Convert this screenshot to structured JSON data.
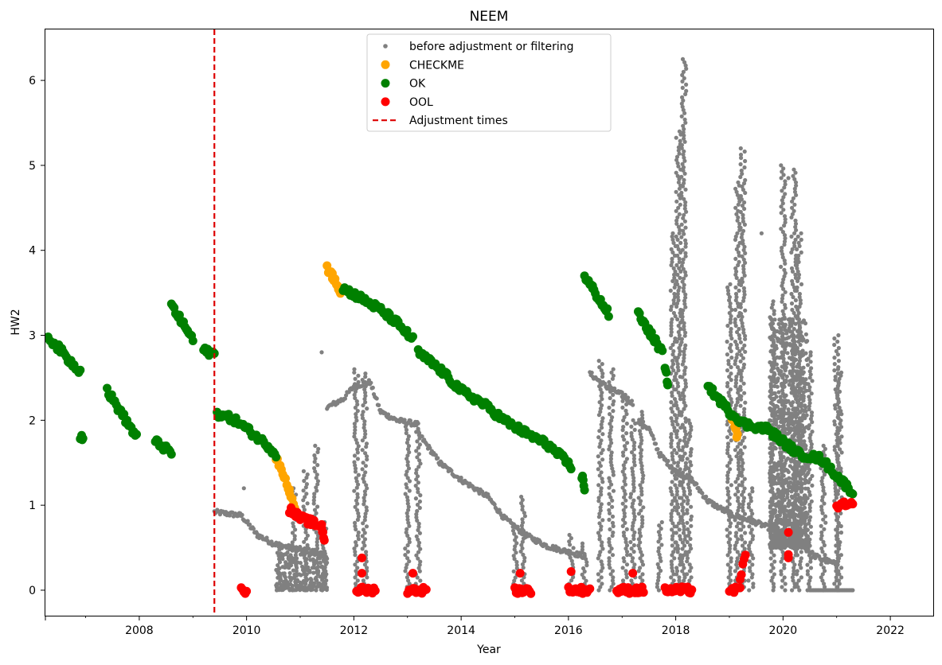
{
  "chart_data": {
    "type": "scatter",
    "title": "NEEM",
    "xlabel": "Year",
    "ylabel": "HW2",
    "xlim": [
      2006.25,
      2022.8
    ],
    "ylim": [
      -0.3,
      6.6
    ],
    "x_ticks": [
      2008,
      2010,
      2012,
      2014,
      2016,
      2018,
      2020,
      2022
    ],
    "x_tick_labels": [
      "2008",
      "2010",
      "2012",
      "2014",
      "2016",
      "2018",
      "2020",
      "2022"
    ],
    "y_ticks": [
      0,
      1,
      2,
      3,
      4,
      5,
      6
    ],
    "y_tick_labels": [
      "0",
      "1",
      "2",
      "3",
      "4",
      "5",
      "6"
    ],
    "grid": false,
    "legend_position": "top-center",
    "adjustment_times": [
      2009.4
    ],
    "series": [
      {
        "name": "before adjustment or filtering",
        "color": "#808080",
        "marker_size": "small",
        "segments": [
          [
            [
              2009.4,
              0.92
            ],
            [
              2009.9,
              0.88
            ],
            [
              2010.2,
              0.65
            ],
            [
              2010.5,
              0.55
            ],
            [
              2010.8,
              0.5
            ],
            [
              2011.3,
              0.45
            ],
            [
              2011.5,
              0.4
            ]
          ],
          [
            [
              2011.5,
              2.15
            ],
            [
              2011.8,
              2.25
            ],
            [
              2012.0,
              2.4
            ],
            [
              2012.3,
              2.45
            ],
            [
              2012.5,
              2.1
            ],
            [
              2012.8,
              2.0
            ],
            [
              2013.2,
              1.95
            ]
          ],
          [
            [
              2013.2,
              1.85
            ],
            [
              2013.6,
              1.5
            ],
            [
              2014.0,
              1.3
            ],
            [
              2014.5,
              1.1
            ],
            [
              2014.8,
              0.85
            ],
            [
              2015.2,
              0.65
            ],
            [
              2015.6,
              0.52
            ],
            [
              2016.0,
              0.45
            ],
            [
              2016.3,
              0.4
            ]
          ],
          [
            [
              2016.4,
              2.55
            ],
            [
              2016.7,
              2.4
            ],
            [
              2017.0,
              2.3
            ],
            [
              2017.2,
              2.2
            ]
          ],
          [
            [
              2017.3,
              2.0
            ],
            [
              2017.5,
              1.9
            ],
            [
              2017.7,
              1.6
            ],
            [
              2018.0,
              1.4
            ],
            [
              2018.3,
              1.3
            ],
            [
              2018.6,
              1.05
            ],
            [
              2019.0,
              0.9
            ],
            [
              2019.4,
              0.82
            ],
            [
              2019.8,
              0.72
            ],
            [
              2020.2,
              0.6
            ],
            [
              2020.6,
              0.4
            ],
            [
              2021.0,
              0.3
            ]
          ]
        ],
        "spikes": [
          [
            2010.6,
            0,
            0.55
          ],
          [
            2010.9,
            0,
            1.2
          ],
          [
            2011.1,
            0,
            1.4
          ],
          [
            2011.3,
            0,
            1.7
          ],
          [
            2011.45,
            0,
            0.8
          ],
          [
            2012.05,
            0,
            2.6
          ],
          [
            2012.2,
            0,
            2.55
          ],
          [
            2013.0,
            0,
            2.0
          ],
          [
            2013.2,
            0,
            1.9
          ],
          [
            2015.0,
            0,
            0.7
          ],
          [
            2015.15,
            0,
            1.1
          ],
          [
            2016.05,
            0,
            0.65
          ],
          [
            2016.3,
            0,
            0.55
          ],
          [
            2016.6,
            0,
            2.7
          ],
          [
            2016.8,
            0,
            2.6
          ],
          [
            2017.05,
            0,
            2.3
          ],
          [
            2017.2,
            0,
            2.0
          ],
          [
            2017.35,
            0,
            2.1
          ],
          [
            2017.7,
            0,
            0.8
          ],
          [
            2017.95,
            0,
            4.2
          ],
          [
            2018.05,
            0,
            5.4
          ],
          [
            2018.15,
            0,
            6.25
          ],
          [
            2018.25,
            0,
            2.0
          ],
          [
            2019.0,
            0,
            3.6
          ],
          [
            2019.15,
            0,
            4.8
          ],
          [
            2019.25,
            0,
            5.2
          ],
          [
            2019.4,
            0,
            1.2
          ],
          [
            2019.8,
            0,
            3.4
          ],
          [
            2020.0,
            0,
            5.0
          ],
          [
            2020.2,
            0,
            4.95
          ],
          [
            2020.3,
            0,
            4.2
          ],
          [
            2020.5,
            0,
            2.8
          ],
          [
            2020.75,
            0,
            1.7
          ],
          [
            2021.0,
            0,
            3.0
          ],
          [
            2021.05,
            0,
            2.6
          ]
        ],
        "clusters": [
          [
            2010.55,
            2011.5,
            0.0,
            0.45
          ],
          [
            2019.75,
            2020.45,
            0.5,
            3.2
          ]
        ],
        "flat_runs": [
          [
            2020.5,
            2021.3,
            0.0
          ]
        ],
        "outliers": [
          [
            2009.95,
            1.2
          ],
          [
            2011.4,
            2.8
          ],
          [
            2019.6,
            4.2
          ],
          [
            2020.1,
            4.85
          ]
        ]
      },
      {
        "name": "CHECKME",
        "color": "#ffa500",
        "marker_size": "large",
        "segments": [
          [
            [
              2010.55,
              1.55
            ],
            [
              2010.7,
              1.35
            ],
            [
              2010.8,
              1.15
            ],
            [
              2010.9,
              1.0
            ]
          ],
          [
            [
              2011.5,
              3.8
            ],
            [
              2011.6,
              3.7
            ],
            [
              2011.7,
              3.6
            ],
            [
              2011.75,
              3.5
            ]
          ],
          [
            [
              2019.0,
              2.05
            ],
            [
              2019.1,
              1.95
            ],
            [
              2019.15,
              1.8
            ]
          ]
        ]
      },
      {
        "name": "OK",
        "color": "#008000",
        "marker_size": "large",
        "segments": [
          [
            [
              2006.3,
              2.98
            ],
            [
              2006.5,
              2.85
            ],
            [
              2006.7,
              2.7
            ],
            [
              2006.9,
              2.58
            ]
          ],
          [
            [
              2006.9,
              1.82
            ],
            [
              2006.95,
              1.8
            ]
          ],
          [
            [
              2007.4,
              2.35
            ],
            [
              2007.6,
              2.15
            ],
            [
              2007.8,
              1.95
            ],
            [
              2007.95,
              1.8
            ]
          ],
          [
            [
              2008.3,
              1.75
            ],
            [
              2008.45,
              1.68
            ],
            [
              2008.6,
              1.62
            ]
          ],
          [
            [
              2008.6,
              3.35
            ],
            [
              2008.75,
              3.2
            ],
            [
              2008.9,
              3.05
            ],
            [
              2009.0,
              2.95
            ]
          ],
          [
            [
              2009.2,
              2.82
            ],
            [
              2009.3,
              2.8
            ],
            [
              2009.4,
              2.78
            ]
          ],
          [
            [
              2009.45,
              2.08
            ],
            [
              2009.8,
              2.0
            ],
            [
              2010.1,
              1.85
            ],
            [
              2010.4,
              1.7
            ],
            [
              2010.55,
              1.6
            ]
          ],
          [
            [
              2011.8,
              3.55
            ],
            [
              2012.1,
              3.45
            ],
            [
              2012.5,
              3.3
            ],
            [
              2012.8,
              3.15
            ],
            [
              2013.1,
              2.95
            ]
          ],
          [
            [
              2013.2,
              2.8
            ],
            [
              2013.6,
              2.6
            ],
            [
              2014.0,
              2.35
            ],
            [
              2014.4,
              2.2
            ],
            [
              2014.8,
              2.0
            ],
            [
              2015.2,
              1.85
            ],
            [
              2015.6,
              1.72
            ],
            [
              2015.9,
              1.55
            ],
            [
              2016.05,
              1.45
            ]
          ],
          [
            [
              2016.25,
              1.35
            ],
            [
              2016.3,
              1.2
            ]
          ],
          [
            [
              2016.3,
              3.7
            ],
            [
              2016.45,
              3.55
            ],
            [
              2016.6,
              3.4
            ],
            [
              2016.75,
              3.25
            ]
          ],
          [
            [
              2017.3,
              3.25
            ],
            [
              2017.45,
              3.1
            ],
            [
              2017.6,
              2.95
            ],
            [
              2017.75,
              2.8
            ]
          ],
          [
            [
              2017.8,
              2.6
            ],
            [
              2017.85,
              2.45
            ]
          ],
          [
            [
              2018.6,
              2.4
            ],
            [
              2018.8,
              2.25
            ],
            [
              2019.0,
              2.1
            ],
            [
              2019.3,
              1.95
            ],
            [
              2019.7,
              1.9
            ],
            [
              2020.0,
              1.75
            ],
            [
              2020.3,
              1.6
            ],
            [
              2020.7,
              1.55
            ],
            [
              2021.0,
              1.35
            ],
            [
              2021.3,
              1.15
            ]
          ]
        ]
      },
      {
        "name": "OOL",
        "color": "#ff0000",
        "marker_size": "large",
        "segments": [
          [
            [
              2009.9,
              0.0
            ],
            [
              2010.0,
              0.0
            ]
          ],
          [
            [
              2010.8,
              0.95
            ],
            [
              2011.0,
              0.85
            ],
            [
              2011.2,
              0.8
            ],
            [
              2011.4,
              0.75
            ],
            [
              2011.45,
              0.6
            ]
          ],
          [
            [
              2012.05,
              0.0
            ],
            [
              2012.4,
              0.0
            ]
          ],
          [
            [
              2013.0,
              0.0
            ],
            [
              2013.35,
              0.0
            ]
          ],
          [
            [
              2015.0,
              0.0
            ],
            [
              2015.3,
              0.0
            ]
          ],
          [
            [
              2016.0,
              0.0
            ],
            [
              2016.4,
              0.0
            ]
          ],
          [
            [
              2016.9,
              0.0
            ],
            [
              2017.4,
              0.0
            ]
          ],
          [
            [
              2017.8,
              0.0
            ],
            [
              2018.3,
              0.0
            ]
          ],
          [
            [
              2019.0,
              0.0
            ],
            [
              2019.2,
              0.0
            ]
          ],
          [
            [
              2019.2,
              0.15
            ],
            [
              2019.3,
              0.4
            ]
          ],
          [
            [
              2021.0,
              1.0
            ],
            [
              2021.3,
              1.0
            ]
          ]
        ],
        "points": [
          [
            2012.15,
            0.38
          ],
          [
            2012.15,
            0.2
          ],
          [
            2013.1,
            0.2
          ],
          [
            2015.1,
            0.2
          ],
          [
            2016.05,
            0.22
          ],
          [
            2017.2,
            0.2
          ],
          [
            2020.1,
            0.68
          ],
          [
            2020.1,
            0.42
          ],
          [
            2020.1,
            0.38
          ]
        ]
      }
    ],
    "legend": [
      {
        "label": "before adjustment or filtering",
        "kind": "small-dot",
        "color": "#808080"
      },
      {
        "label": "CHECKME",
        "kind": "dot",
        "color": "#ffa500"
      },
      {
        "label": "OK",
        "kind": "dot",
        "color": "#008000"
      },
      {
        "label": "OOL",
        "kind": "dot",
        "color": "#ff0000"
      },
      {
        "label": "Adjustment times",
        "kind": "dashed-line",
        "color": "#dd0000"
      }
    ]
  }
}
